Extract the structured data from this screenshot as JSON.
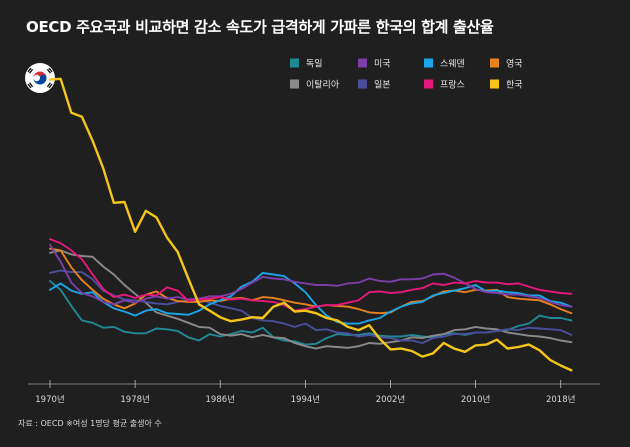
{
  "title": "OECD 주요국과 비교하면 감소 속도가 급격하게 가파른 한국의 합계 출산율",
  "source": "자료 : OECD ※여성 1명당 평균 출생아 수",
  "flag_icon": "south-korea-flag-icon",
  "chart_data": {
    "type": "line",
    "title": "OECD 주요국과 비교하면 감소 속도가 급격하게 가파른 한국의 합계 출산율",
    "xlabel": "",
    "ylabel": "",
    "xlim": [
      1970,
      2020
    ],
    "ylim": [
      0.8,
      4.6
    ],
    "grid": false,
    "legend_position": "top-right",
    "x_ticks": [
      {
        "value": 1970,
        "label": "1970년"
      },
      {
        "value": 1978,
        "label": "1978년"
      },
      {
        "value": 1986,
        "label": "1986년"
      },
      {
        "value": 1994,
        "label": "1994년"
      },
      {
        "value": 2002,
        "label": "2002년"
      },
      {
        "value": 2010,
        "label": "2010년"
      },
      {
        "value": 2018,
        "label": "2018년"
      }
    ],
    "x": [
      1970,
      1971,
      1972,
      1973,
      1974,
      1975,
      1976,
      1977,
      1978,
      1979,
      1980,
      1981,
      1982,
      1983,
      1984,
      1985,
      1986,
      1987,
      1988,
      1989,
      1990,
      1991,
      1992,
      1993,
      1994,
      1995,
      1996,
      1997,
      1998,
      1999,
      2000,
      2001,
      2002,
      2003,
      2004,
      2005,
      2006,
      2007,
      2008,
      2009,
      2010,
      2011,
      2012,
      2013,
      2014,
      2015,
      2016,
      2017,
      2018,
      2019
    ],
    "series": [
      {
        "name": "독일",
        "color": "#1f8a96",
        "values": [
          2.03,
          1.92,
          1.72,
          1.54,
          1.51,
          1.45,
          1.46,
          1.4,
          1.38,
          1.38,
          1.44,
          1.43,
          1.41,
          1.33,
          1.29,
          1.37,
          1.34,
          1.37,
          1.41,
          1.39,
          1.45,
          1.33,
          1.29,
          1.28,
          1.24,
          1.25,
          1.32,
          1.37,
          1.36,
          1.36,
          1.38,
          1.35,
          1.34,
          1.34,
          1.36,
          1.34,
          1.33,
          1.37,
          1.38,
          1.36,
          1.39,
          1.39,
          1.41,
          1.42,
          1.47,
          1.5,
          1.6,
          1.57,
          1.57,
          1.54
        ]
      },
      {
        "name": "미국",
        "color": "#7b3fa8",
        "values": [
          2.48,
          2.27,
          2.01,
          1.88,
          1.84,
          1.77,
          1.74,
          1.79,
          1.76,
          1.81,
          1.84,
          1.81,
          1.83,
          1.8,
          1.81,
          1.84,
          1.84,
          1.87,
          1.93,
          2.01,
          2.08,
          2.06,
          2.05,
          2.02,
          2.0,
          1.98,
          1.98,
          1.97,
          2.0,
          2.01,
          2.06,
          2.03,
          2.02,
          2.05,
          2.05,
          2.06,
          2.11,
          2.12,
          2.07,
          2.0,
          1.93,
          1.89,
          1.88,
          1.86,
          1.86,
          1.84,
          1.82,
          1.77,
          1.73,
          1.71
        ]
      },
      {
        "name": "스웨덴",
        "color": "#1aa5e8",
        "values": [
          1.92,
          2.0,
          1.91,
          1.87,
          1.89,
          1.77,
          1.69,
          1.65,
          1.6,
          1.66,
          1.68,
          1.63,
          1.62,
          1.61,
          1.66,
          1.74,
          1.79,
          1.84,
          1.96,
          2.02,
          2.13,
          2.11,
          2.09,
          2.0,
          1.89,
          1.73,
          1.6,
          1.52,
          1.5,
          1.5,
          1.54,
          1.57,
          1.65,
          1.71,
          1.75,
          1.77,
          1.85,
          1.88,
          1.91,
          1.94,
          1.98,
          1.9,
          1.91,
          1.89,
          1.88,
          1.85,
          1.85,
          1.78,
          1.76,
          1.71
        ]
      },
      {
        "name": "영국",
        "color": "#e8821e",
        "values": [
          2.43,
          2.41,
          2.2,
          2.04,
          1.92,
          1.81,
          1.74,
          1.69,
          1.75,
          1.86,
          1.9,
          1.82,
          1.78,
          1.77,
          1.77,
          1.79,
          1.78,
          1.81,
          1.82,
          1.79,
          1.83,
          1.82,
          1.79,
          1.76,
          1.74,
          1.71,
          1.73,
          1.72,
          1.71,
          1.68,
          1.64,
          1.63,
          1.64,
          1.71,
          1.77,
          1.78,
          1.84,
          1.9,
          1.91,
          1.89,
          1.92,
          1.91,
          1.92,
          1.83,
          1.81,
          1.8,
          1.79,
          1.74,
          1.68,
          1.63
        ]
      },
      {
        "name": "이탈리아",
        "color": "#8a8a8a",
        "values": [
          2.38,
          2.41,
          2.36,
          2.34,
          2.33,
          2.21,
          2.11,
          1.98,
          1.87,
          1.76,
          1.64,
          1.6,
          1.56,
          1.51,
          1.46,
          1.45,
          1.37,
          1.35,
          1.37,
          1.33,
          1.36,
          1.33,
          1.32,
          1.26,
          1.22,
          1.19,
          1.22,
          1.21,
          1.2,
          1.22,
          1.26,
          1.25,
          1.27,
          1.29,
          1.33,
          1.32,
          1.35,
          1.37,
          1.42,
          1.43,
          1.46,
          1.44,
          1.43,
          1.39,
          1.37,
          1.35,
          1.34,
          1.32,
          1.29,
          1.27
        ]
      },
      {
        "name": "일본",
        "color": "#4a4f9c",
        "values": [
          2.13,
          2.16,
          2.14,
          2.14,
          2.05,
          1.91,
          1.85,
          1.8,
          1.79,
          1.77,
          1.75,
          1.74,
          1.77,
          1.8,
          1.81,
          1.76,
          1.72,
          1.69,
          1.66,
          1.57,
          1.54,
          1.53,
          1.5,
          1.46,
          1.5,
          1.42,
          1.43,
          1.39,
          1.38,
          1.34,
          1.36,
          1.33,
          1.32,
          1.29,
          1.29,
          1.26,
          1.32,
          1.34,
          1.37,
          1.37,
          1.39,
          1.39,
          1.41,
          1.43,
          1.42,
          1.45,
          1.44,
          1.43,
          1.42,
          1.36
        ]
      },
      {
        "name": "프랑스",
        "color": "#e6177a",
        "values": [
          2.55,
          2.5,
          2.41,
          2.3,
          2.11,
          1.93,
          1.83,
          1.86,
          1.82,
          1.86,
          1.85,
          1.95,
          1.91,
          1.78,
          1.8,
          1.81,
          1.83,
          1.8,
          1.81,
          1.79,
          1.78,
          1.77,
          1.73,
          1.66,
          1.68,
          1.71,
          1.73,
          1.73,
          1.76,
          1.79,
          1.89,
          1.9,
          1.88,
          1.89,
          1.92,
          1.94,
          2.0,
          1.98,
          2.01,
          2.0,
          2.03,
          2.01,
          2.01,
          1.99,
          2.0,
          1.96,
          1.92,
          1.9,
          1.88,
          1.87
        ]
      },
      {
        "name": "한국",
        "color": "#f5c518",
        "values": [
          4.53,
          4.54,
          4.12,
          4.07,
          3.77,
          3.43,
          3.0,
          3.01,
          2.64,
          2.9,
          2.82,
          2.57,
          2.39,
          2.06,
          1.74,
          1.66,
          1.58,
          1.53,
          1.55,
          1.58,
          1.57,
          1.71,
          1.76,
          1.65,
          1.66,
          1.63,
          1.57,
          1.54,
          1.46,
          1.42,
          1.48,
          1.31,
          1.18,
          1.19,
          1.16,
          1.09,
          1.13,
          1.26,
          1.19,
          1.15,
          1.23,
          1.24,
          1.3,
          1.19,
          1.21,
          1.24,
          1.17,
          1.05,
          0.98,
          0.92
        ]
      }
    ]
  }
}
